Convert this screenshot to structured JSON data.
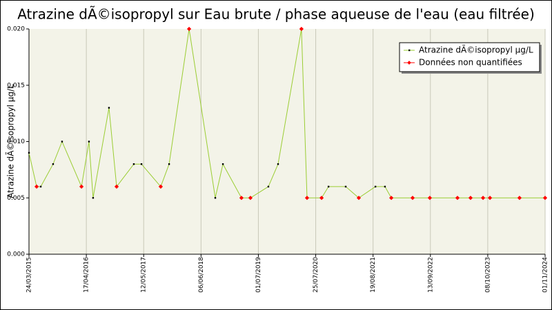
{
  "chart_data": {
    "type": "line",
    "title": "Atrazine dÃ©isopropyl sur Eau brute / phase aqueuse de l'eau (eau filtrée)",
    "y_label": "Atrazine dÃ©isopropyl µg/L",
    "x": [
      "24/03/2015",
      "15/05/2015",
      "12/06/2015",
      "04/09/2015",
      "04/11/2015",
      "15/03/2016",
      "05/05/2016",
      "02/06/2016",
      "18/09/2016",
      "09/11/2016",
      "06/03/2017",
      "27/04/2017",
      "05/09/2017",
      "01/11/2017",
      "17/03/2018",
      "11/09/2018",
      "02/11/2018",
      "08/03/2019",
      "08/05/2019",
      "07/09/2019",
      "12/11/2019",
      "19/04/2020",
      "27/05/2020",
      "03/09/2020",
      "20/10/2020",
      "14/02/2021",
      "14/05/2021",
      "04/09/2021",
      "08/11/2021",
      "21/12/2021",
      "15/05/2022",
      "09/09/2022",
      "16/03/2023",
      "13/06/2023",
      "06/09/2023",
      "23/10/2023",
      "11/05/2024",
      "01/11/2024"
    ],
    "series": [
      {
        "name": "Atrazine dÃ©isopropyl µg/L",
        "color": "#9acd32",
        "values": [
          0.009,
          0.006,
          0.006,
          0.008,
          0.01,
          0.006,
          0.01,
          0.005,
          0.013,
          0.006,
          0.008,
          0.008,
          0.006,
          0.008,
          0.02,
          0.005,
          0.008,
          0.005,
          0.005,
          0.006,
          0.008,
          0.02,
          0.005,
          0.005,
          0.006,
          0.006,
          0.005,
          0.006,
          0.006,
          0.005,
          0.005,
          0.005,
          0.005,
          0.005,
          0.005,
          0.005,
          0.005,
          0.005
        ],
        "point_colors": [
          "#000000",
          "#ff0000",
          "#000000",
          "#000000",
          "#000000",
          "#ff0000",
          "#000000",
          "#000000",
          "#000000",
          "#ff0000",
          "#000000",
          "#000000",
          "#ff0000",
          "#000000",
          "#ff0000",
          "#000000",
          "#000000",
          "#ff0000",
          "#ff0000",
          "#000000",
          "#000000",
          "#ff0000",
          "#ff0000",
          "#ff0000",
          "#000000",
          "#000000",
          "#ff0000",
          "#000000",
          "#000000",
          "#ff0000",
          "#ff0000",
          "#ff0000",
          "#ff0000",
          "#ff0000",
          "#ff0000",
          "#ff0000",
          "#ff0000",
          "#ff0000"
        ],
        "marker_color": "#000000"
      }
    ],
    "legend_entries": [
      {
        "name": "Données non quantifiées",
        "color": "#ff0000"
      }
    ],
    "legend_position": "top-right",
    "xlim": [
      "24/03/2015",
      "01/11/2024"
    ],
    "xticks": [
      "24/03/2015",
      "17/04/2016",
      "12/05/2017",
      "06/06/2018",
      "01/07/2019",
      "25/07/2020",
      "19/08/2021",
      "13/09/2022",
      "08/10/2023",
      "01/11/2024"
    ],
    "ylim": [
      0,
      0.02
    ],
    "yticks": [
      {
        "value": 0,
        "label": "0.000"
      },
      0.005,
      {
        "value": 0.01,
        "label": "0.010"
      },
      0.015,
      {
        "value": 0.02,
        "label": "0.020"
      }
    ],
    "grid": true
  }
}
